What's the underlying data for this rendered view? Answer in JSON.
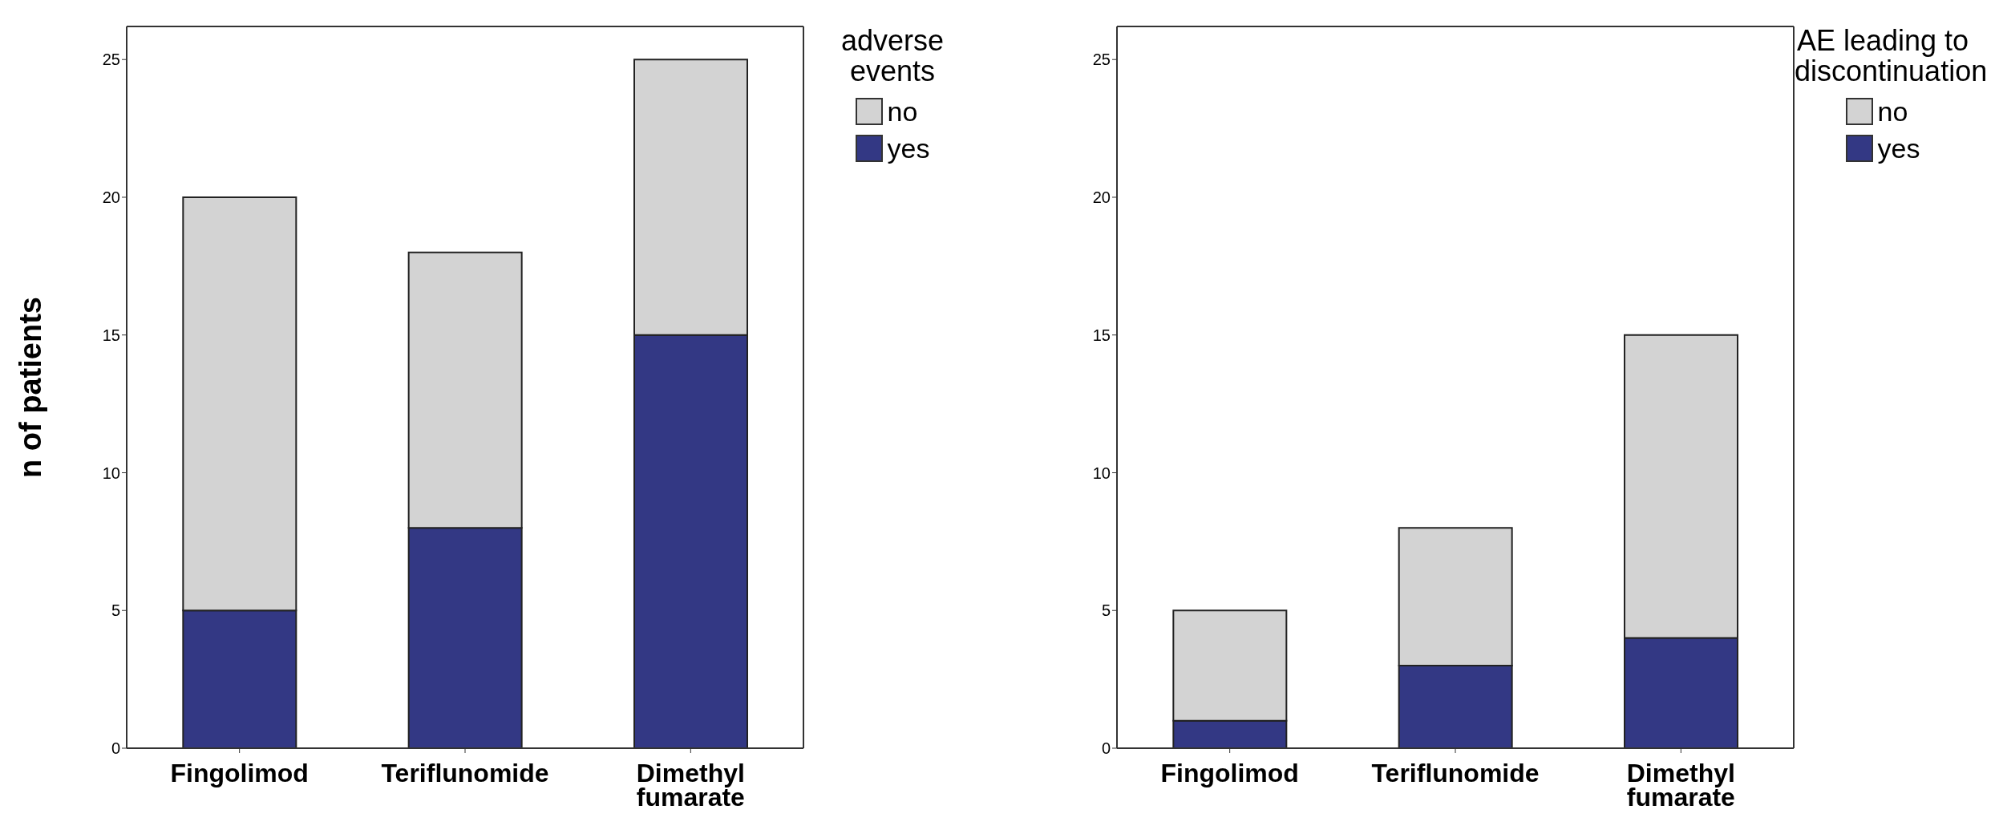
{
  "chart_data": [
    {
      "type": "bar",
      "stacked": true,
      "ylabel": "n of patients",
      "legend_title": "adverse events",
      "legend": "right",
      "categories": [
        "Fingolimod",
        "Teriflunomide",
        "Dimethyl fumarate"
      ],
      "ylim": [
        0,
        26.2
      ],
      "yticks": [
        0,
        5,
        10,
        15,
        20,
        25
      ],
      "grid": false,
      "series": [
        {
          "name": "yes",
          "color": "#333884",
          "values": [
            5,
            8,
            15
          ]
        },
        {
          "name": "no",
          "color": "#d3d3d3",
          "values": [
            15,
            10,
            10
          ]
        }
      ]
    },
    {
      "type": "bar",
      "stacked": true,
      "legend_title": "AE leading to discontinuation",
      "legend": "right",
      "categories": [
        "Fingolimod",
        "Teriflunomide",
        "Dimethyl fumarate"
      ],
      "ylim": [
        0,
        26.2
      ],
      "yticks": [
        0,
        5,
        10,
        15,
        20,
        25
      ],
      "grid": false,
      "series": [
        {
          "name": "yes",
          "color": "#333884",
          "values": [
            1,
            3,
            4
          ]
        },
        {
          "name": "no",
          "color": "#d3d3d3",
          "values": [
            4,
            5,
            11
          ]
        }
      ]
    }
  ]
}
